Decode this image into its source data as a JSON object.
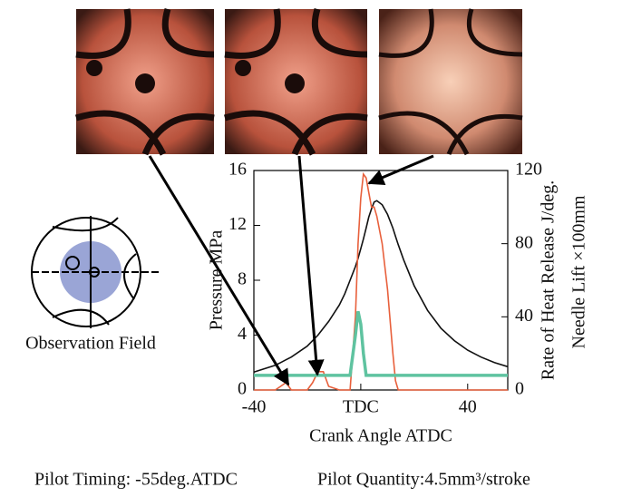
{
  "chart_data": {
    "type": "line",
    "x": [
      -40,
      -32,
      -30,
      -28,
      -26,
      -20,
      -18,
      -16,
      -14,
      -12,
      -8,
      -6,
      -4,
      -2,
      -1,
      0,
      1,
      2,
      3,
      4,
      5,
      6,
      8,
      10,
      12,
      13,
      14,
      16,
      20,
      25,
      30,
      35,
      40,
      45,
      50,
      55
    ],
    "series": [
      {
        "color": "#111111",
        "values": [
          1.3,
          1.8,
          2.0,
          2.2,
          2.4,
          3.2,
          3.6,
          4.0,
          4.5,
          5.0,
          6.2,
          7.0,
          8.0,
          9.0,
          9.6,
          10.3,
          11.0,
          11.8,
          12.6,
          13.2,
          13.7,
          13.8,
          13.5,
          12.8,
          11.8,
          11.2,
          10.6,
          9.5,
          7.6,
          5.8,
          4.5,
          3.6,
          2.9,
          2.4,
          2.0,
          1.7
        ]
      },
      {
        "color": "#e8603c",
        "axis": "y2",
        "values": [
          0,
          0,
          2,
          4,
          0,
          0,
          4,
          10,
          10,
          2,
          0,
          0,
          0,
          40,
          80,
          105,
          118,
          116,
          108,
          100,
          100,
          95,
          80,
          55,
          20,
          5,
          0,
          0,
          0,
          0,
          0,
          0,
          0,
          0,
          0,
          0
        ]
      },
      {
        "color": "#5fc3a0",
        "axis": "y2",
        "values": [
          8,
          8,
          8,
          8,
          8,
          8,
          8,
          8,
          8,
          8,
          8,
          8,
          8,
          30,
          43,
          36,
          20,
          8,
          8,
          8,
          8,
          8,
          8,
          8,
          8,
          8,
          8,
          8,
          8,
          8,
          8,
          8,
          8,
          8,
          8,
          8
        ]
      }
    ],
    "xlim": [
      -40,
      55
    ],
    "xticks": [
      -40,
      {
        "value": 0,
        "label": "TDC"
      },
      40
    ],
    "ylim": [
      0,
      16
    ],
    "yticks": [
      0,
      4,
      8,
      12,
      16
    ],
    "y2lim": [
      0,
      120
    ],
    "y2ticks": [
      0,
      40,
      80,
      120
    ],
    "x_label": "Crank Angle ATDC",
    "y_label": "Pressure MPa",
    "y2_label": "Rate of Heat Release  J/deg.",
    "y2_label_2": "Needle Lift ×100mm",
    "inset_label": "Observation Field",
    "caption": [
      "Pilot Timing: -55deg.ATDC",
      "Pilot Quantity:4.5mm³/stroke"
    ]
  }
}
